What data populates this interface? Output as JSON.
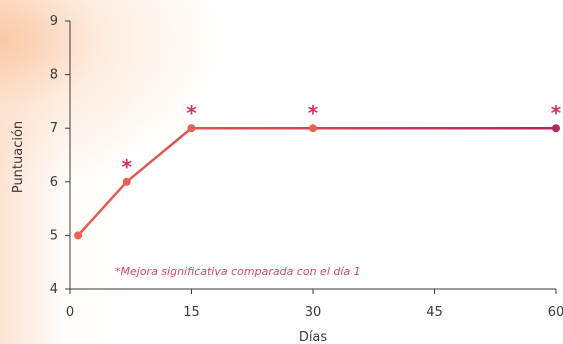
{
  "chart_data": {
    "type": "line",
    "xlabel": "Días",
    "ylabel": "Puntuación",
    "xlim": [
      0,
      60
    ],
    "ylim": [
      4,
      9
    ],
    "x_ticks": [
      0,
      15,
      30,
      45,
      60
    ],
    "y_ticks": [
      4,
      5,
      6,
      7,
      8,
      9
    ],
    "series": [
      {
        "x": [
          1,
          7,
          15,
          30,
          60
        ],
        "y": [
          5,
          6,
          7,
          7,
          7
        ]
      }
    ],
    "significance_marker": "*",
    "significant_x": [
      7,
      15,
      30,
      60
    ],
    "annotation": "*Mejora significativa comparada con el día 1",
    "grid": false,
    "colors": {
      "line_start": "#e8614f",
      "line_end": "#b0285f",
      "marker": "#d62f62",
      "axis": "#3a3a3a"
    }
  }
}
